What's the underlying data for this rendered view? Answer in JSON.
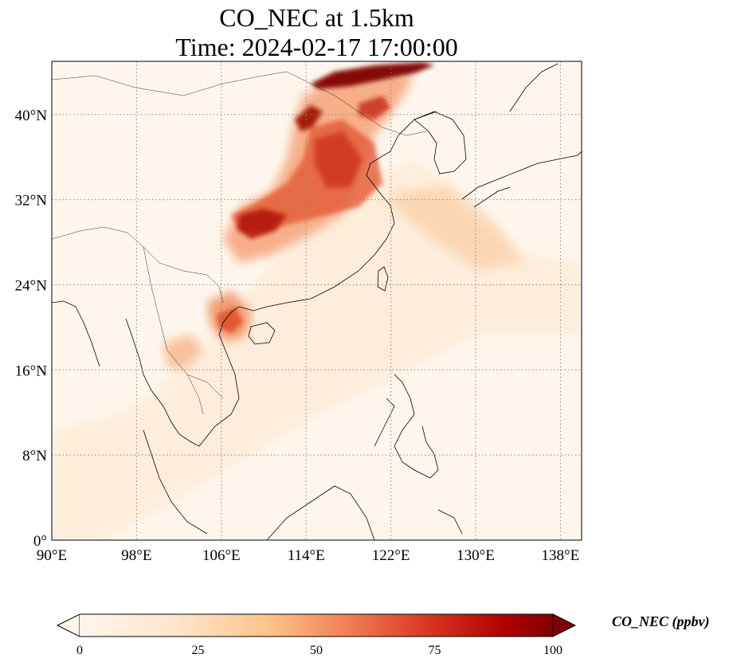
{
  "title_line1": "CO_NEC at 1.5km",
  "title_line2": "Time: 2024-02-17 17:00:00",
  "map": {
    "lon_range": [
      90,
      140
    ],
    "lat_range": [
      0,
      45
    ],
    "lon_ticks": [
      90,
      98,
      106,
      114,
      122,
      130,
      138
    ],
    "lat_ticks": [
      0,
      8,
      16,
      24,
      32,
      40
    ],
    "lon_tick_labels": [
      "90°E",
      "98°E",
      "106°E",
      "114°E",
      "122°E",
      "130°E",
      "138°E"
    ],
    "lat_tick_labels": [
      "0°",
      "8°N",
      "16°N",
      "24°N",
      "32°N",
      "40°N"
    ],
    "grid": "dotted",
    "colors": {
      "low": "#fff5eb",
      "mid": "#fdae6b",
      "high": "#d94801",
      "max": "#7f0000"
    }
  },
  "colorbar": {
    "label": "CO_NEC (ppbv)",
    "range": [
      0,
      100
    ],
    "ticks": [
      0,
      25,
      50,
      75,
      100
    ],
    "tick_labels": [
      "0",
      "25",
      "50",
      "75",
      "100"
    ],
    "extend": "both",
    "colormap": "OrRd"
  }
}
